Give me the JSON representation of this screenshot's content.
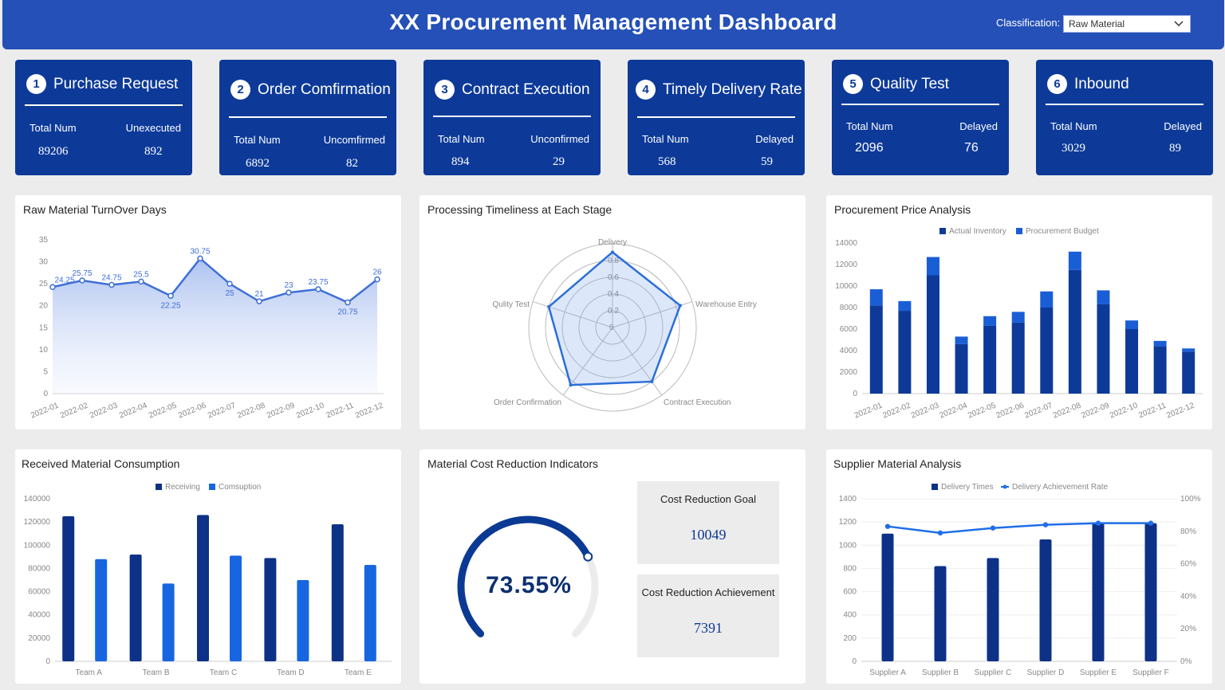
{
  "header": {
    "title": "XX Procurement Management Dashboard",
    "classification_label": "Classification:",
    "classification_value": "Raw Material"
  },
  "kpis": [
    {
      "num": "1",
      "label": "Purchase Request",
      "stat1_label": "Total Num",
      "stat1_value": "89206",
      "stat2_label": "Unexecuted",
      "stat2_value": "892"
    },
    {
      "num": "2",
      "label": "Order Comfirmation",
      "stat1_label": "Total Num",
      "stat1_value": "6892",
      "stat2_label": "Uncomfirmed",
      "stat2_value": "82"
    },
    {
      "num": "3",
      "label": "Contract Execution",
      "stat1_label": "Total Num",
      "stat1_value": "894",
      "stat2_label": "Unconfirmed",
      "stat2_value": "29"
    },
    {
      "num": "4",
      "label": "Timely Delivery Rate",
      "stat1_label": "Total Num",
      "stat1_value": "568",
      "stat2_label": "Delayed",
      "stat2_value": "59"
    },
    {
      "num": "5",
      "label": "Quality Test",
      "stat1_label": "Total Num",
      "stat1_value": "2096",
      "stat2_label": "Delayed",
      "stat2_value": "76"
    },
    {
      "num": "6",
      "label": "Inbound",
      "stat1_label": "Total Num",
      "stat1_value": "3029",
      "stat2_label": "Delayed",
      "stat2_value": "89"
    }
  ],
  "panels": {
    "turnover": {
      "title": "Raw Material TurnOver Days"
    },
    "timeliness": {
      "title": "Processing Timeliness at Each Stage"
    },
    "price": {
      "title": "Procurement Price Analysis"
    },
    "consumption": {
      "title": "Received Material Consumption"
    },
    "cost": {
      "title": "Material Cost Reduction Indicators",
      "gauge_value": "73.55%",
      "gauge_fraction": 0.7355,
      "goal_label": "Cost Reduction Goal",
      "goal_value": "10049",
      "achievement_label": "Cost Reduction Achievement",
      "achievement_value": "7391"
    },
    "supplier": {
      "title": "Supplier Material Analysis"
    }
  },
  "colors": {
    "navy": "#0d3a99",
    "blue": "#1a5ed6",
    "light": "#3f6fd6",
    "header": "#2450b7"
  },
  "chart_data": [
    {
      "type": "area",
      "categories": [
        "2022-01",
        "2022-02",
        "2022-03",
        "2022-04",
        "2022-05",
        "2022-06",
        "2022-07",
        "2022-08",
        "2022-09",
        "2022-10",
        "2022-11",
        "2022-12"
      ],
      "values": [
        24.25,
        25.75,
        24.75,
        25.5,
        22.25,
        30.75,
        25,
        21,
        23,
        23.75,
        20.75,
        26
      ],
      "data_labels": [
        "24.25",
        "25.75",
        "24.75",
        "25.5",
        "22.25",
        "30.75",
        "25",
        "21",
        "23",
        "23.75",
        "20.75",
        "26"
      ],
      "yticks": [
        "0",
        "5",
        "10",
        "15",
        "20",
        "25",
        "30",
        "35"
      ],
      "ylim": [
        0,
        35
      ]
    },
    {
      "type": "radar",
      "indicators": [
        "Delivery",
        "Warehouse Entry",
        "Contract Execution",
        "Order Confirmation",
        "Qulity Test"
      ],
      "values": [
        0.9,
        0.85,
        0.8,
        0.85,
        0.8
      ],
      "rings": [
        "0",
        "0.2",
        "0.4",
        "0.6",
        "0.8"
      ],
      "max": 1
    },
    {
      "type": "bar",
      "stacked": true,
      "categories": [
        "2022-01",
        "2022-02",
        "2022-03",
        "2022-04",
        "2022-05",
        "2022-06",
        "2022-07",
        "2022-08",
        "2022-09",
        "2022-10",
        "2022-11",
        "2022-12"
      ],
      "series": [
        {
          "name": "Actual Inventory",
          "values": [
            8200,
            7700,
            11000,
            4600,
            6300,
            6600,
            8000,
            11500,
            8300,
            6000,
            4400,
            3900
          ]
        },
        {
          "name": "Procurement Budget",
          "values": [
            1500,
            900,
            1700,
            700,
            900,
            1000,
            1500,
            1700,
            1300,
            800,
            500,
            300
          ]
        }
      ],
      "yticks": [
        "0",
        "2000",
        "4000",
        "6000",
        "8000",
        "10000",
        "12000",
        "14000"
      ],
      "ylim": [
        0,
        14000
      ]
    },
    {
      "type": "bar",
      "categories": [
        "Team A",
        "Team B",
        "Team C",
        "Team D",
        "Team E"
      ],
      "series": [
        {
          "name": "Receiving",
          "values": [
            125000,
            92000,
            126000,
            89000,
            118000
          ]
        },
        {
          "name": "Comsuption",
          "values": [
            88000,
            67000,
            91000,
            70000,
            83000
          ]
        }
      ],
      "yticks": [
        "0",
        "20000",
        "40000",
        "60000",
        "80000",
        "100000",
        "120000",
        "140000"
      ],
      "ylim": [
        0,
        140000
      ]
    },
    {
      "type": "bar",
      "categories": [
        "Supplier A",
        "Supplier B",
        "Supplier C",
        "Supplier D",
        "Supplier E",
        "Supplier F"
      ],
      "series": [
        {
          "name": "Delivery Times",
          "values": [
            1100,
            820,
            890,
            1050,
            1190,
            1190
          ]
        },
        {
          "name": "Delivery Achievement Rate",
          "values": [
            0.83,
            0.79,
            0.82,
            0.84,
            0.85,
            0.85
          ]
        }
      ],
      "yticks": [
        "0",
        "200",
        "400",
        "600",
        "800",
        "1000",
        "1200",
        "1400"
      ],
      "ylim": [
        0,
        1400
      ],
      "y2ticks": [
        "0%",
        "20%",
        "40%",
        "60%",
        "80%",
        "100%"
      ],
      "y2lim": [
        0,
        1
      ]
    }
  ]
}
